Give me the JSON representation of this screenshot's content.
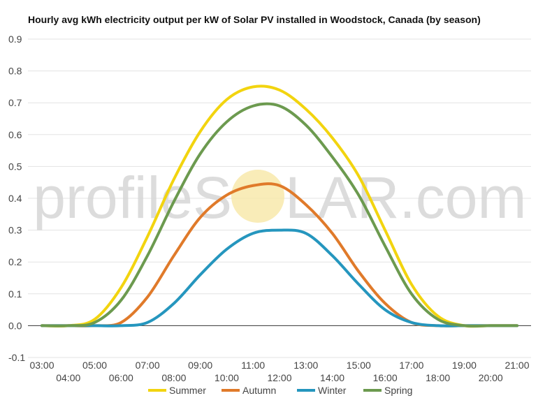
{
  "watermark": {
    "text_left": "profileS",
    "text_right": "LAR.com",
    "color": "#d6d6d6",
    "sun_color": "#f7e7a6"
  },
  "colors": {
    "background": "#ffffff",
    "grid": "#e3e3e3",
    "zero_line": "#333333"
  },
  "chart_data": {
    "type": "line",
    "title": "Hourly avg kWh electricity output per kW of Solar PV installed in Woodstock, Canada (by season)",
    "xlabel": "",
    "ylabel": "",
    "ylim": [
      -0.1,
      0.9
    ],
    "yticks": [
      "-0.1",
      "0.0",
      "0.1",
      "0.2",
      "0.3",
      "0.4",
      "0.5",
      "0.6",
      "0.7",
      "0.8",
      "0.9"
    ],
    "x": [
      "03:00",
      "04:00",
      "05:00",
      "06:00",
      "07:00",
      "08:00",
      "09:00",
      "10:00",
      "11:00",
      "12:00",
      "13:00",
      "14:00",
      "15:00",
      "16:00",
      "17:00",
      "18:00",
      "19:00",
      "20:00",
      "21:00"
    ],
    "grid": true,
    "legend": "bottom",
    "series": [
      {
        "name": "Summer",
        "color": "#f2d40f",
        "values": [
          0.0,
          0.0,
          0.02,
          0.12,
          0.28,
          0.46,
          0.61,
          0.71,
          0.75,
          0.74,
          0.68,
          0.59,
          0.47,
          0.3,
          0.13,
          0.03,
          0.0,
          0.0,
          0.0
        ]
      },
      {
        "name": "Autumn",
        "color": "#e07a2a",
        "values": [
          0.0,
          0.0,
          0.0,
          0.01,
          0.09,
          0.22,
          0.34,
          0.41,
          0.44,
          0.44,
          0.38,
          0.29,
          0.17,
          0.07,
          0.01,
          0.0,
          0.0,
          0.0,
          0.0
        ]
      },
      {
        "name": "Winter",
        "color": "#2596be",
        "values": [
          0.0,
          0.0,
          0.0,
          0.0,
          0.01,
          0.07,
          0.16,
          0.24,
          0.29,
          0.3,
          0.29,
          0.22,
          0.13,
          0.05,
          0.01,
          0.0,
          0.0,
          0.0,
          0.0
        ]
      },
      {
        "name": "Spring",
        "color": "#6c9a4f",
        "values": [
          0.0,
          0.0,
          0.01,
          0.08,
          0.22,
          0.39,
          0.54,
          0.64,
          0.69,
          0.69,
          0.63,
          0.53,
          0.41,
          0.25,
          0.1,
          0.02,
          0.0,
          0.0,
          0.0
        ]
      }
    ]
  }
}
